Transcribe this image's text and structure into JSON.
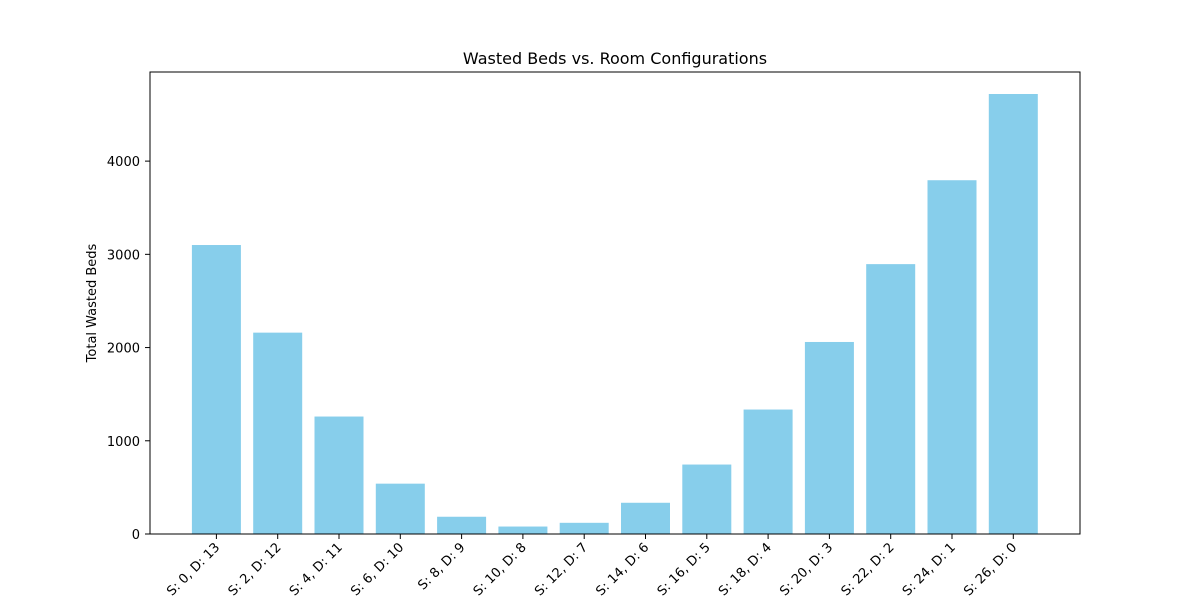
{
  "chart_data": {
    "type": "bar",
    "title": "Wasted Beds vs. Room Configurations",
    "xlabel": "",
    "ylabel": "Total Wasted Beds",
    "categories": [
      "S: 0, D: 13",
      "S: 2, D: 12",
      "S: 4, D: 11",
      "S: 6, D: 10",
      "S: 8, D: 9",
      "S: 10, D: 8",
      "S: 12, D: 7",
      "S: 14, D: 6",
      "S: 16, D: 5",
      "S: 18, D: 4",
      "S: 20, D: 3",
      "S: 22, D: 2",
      "S: 24, D: 1",
      "S: 26, D: 0"
    ],
    "values": [
      3100,
      2160,
      1260,
      540,
      185,
      80,
      120,
      335,
      745,
      1335,
      2060,
      2895,
      3795,
      4720
    ],
    "ylim": [
      0,
      4956
    ],
    "yticks": [
      0,
      1000,
      2000,
      3000,
      4000
    ],
    "bar_color": "#87ceeb",
    "grid": false
  }
}
